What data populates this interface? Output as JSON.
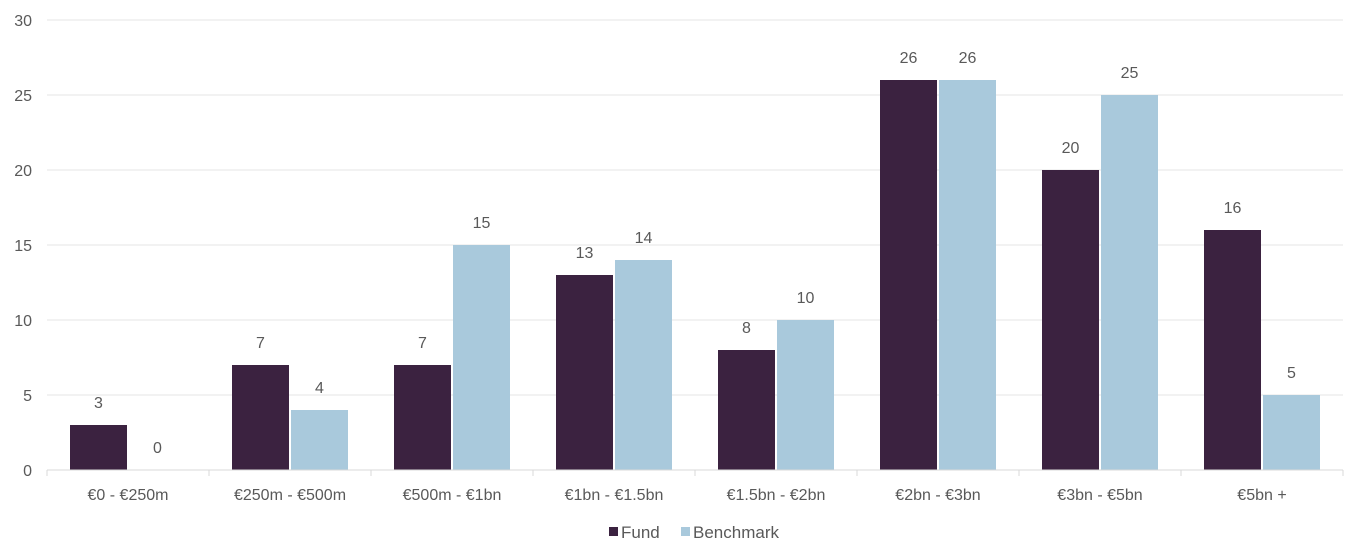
{
  "chart_data": {
    "type": "bar",
    "title": "",
    "xlabel": "",
    "ylabel": "",
    "categories": [
      "€0 - €250m",
      "€250m - €500m",
      "€500m - €1bn",
      "€1bn - €1.5bn",
      "€1.5bn - €2bn",
      "€2bn - €3bn",
      "€3bn - €5bn",
      "€5bn +"
    ],
    "series": [
      {
        "name": "Fund",
        "color": "#3b2240",
        "values": [
          3,
          7,
          7,
          13,
          8,
          26,
          20,
          16
        ]
      },
      {
        "name": "Benchmark",
        "color": "#a9c9dc",
        "values": [
          0,
          4,
          15,
          14,
          10,
          26,
          25,
          5
        ]
      }
    ],
    "ylim": [
      0,
      30
    ],
    "yticks": [
      "0",
      "5",
      "10",
      "15",
      "20",
      "25",
      "30"
    ],
    "grid": true,
    "legend_position": "bottom-center",
    "data_labels": true
  }
}
